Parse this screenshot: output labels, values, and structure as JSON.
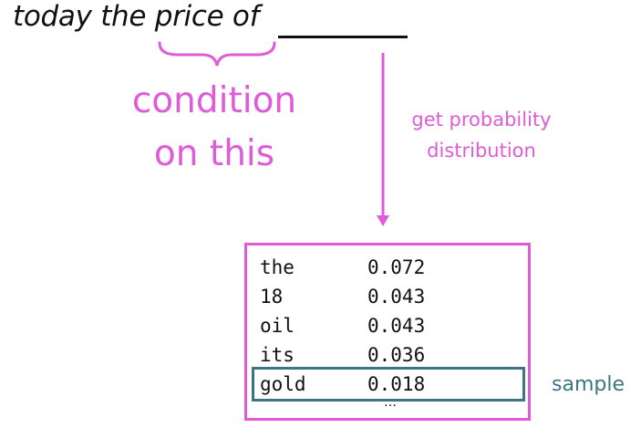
{
  "prompt": {
    "text": "today the price of"
  },
  "condition_label": {
    "line1": "condition",
    "line2": "on this"
  },
  "arrow_label": {
    "line1": "get probability",
    "line2": "distribution"
  },
  "distribution": {
    "rows": [
      {
        "word": "the",
        "prob": "0.072"
      },
      {
        "word": "18",
        "prob": "0.043"
      },
      {
        "word": "oil",
        "prob": "0.043"
      },
      {
        "word": "its",
        "prob": "0.036"
      },
      {
        "word": "gold",
        "prob": "0.018"
      }
    ],
    "ellipsis": "…",
    "selected_index": 4
  },
  "sample_label": "sample",
  "colors": {
    "accent": "#e05bd8",
    "sample": "#3c7584",
    "text": "#111111"
  }
}
